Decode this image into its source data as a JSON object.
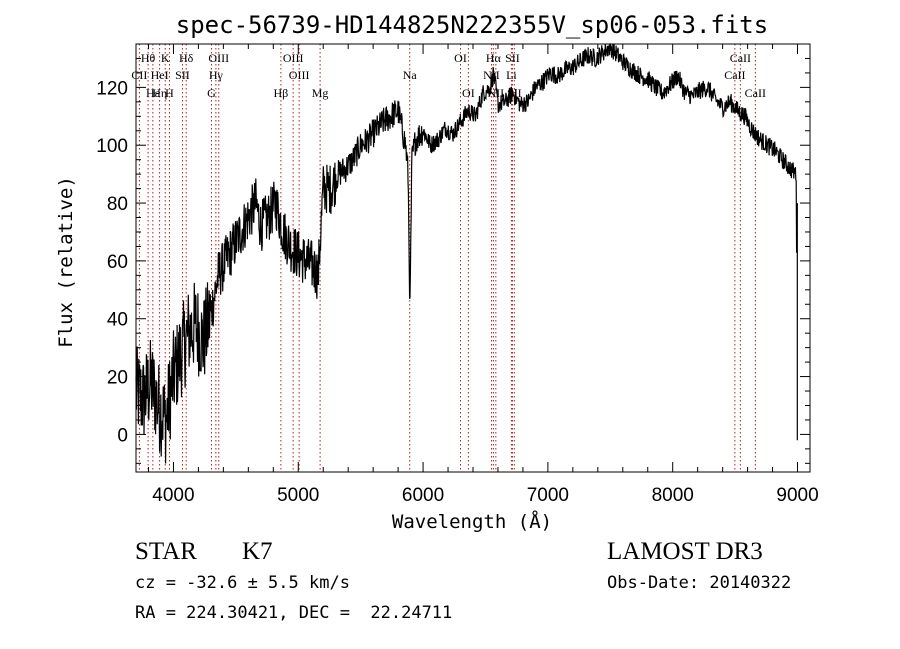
{
  "chart_data": {
    "type": "line",
    "title": "spec-56739-HD144825N222355V_sp06-053.fits",
    "xlabel": "Wavelength (Å)",
    "ylabel": "Flux (relative)",
    "xlim": [
      3700,
      9100
    ],
    "ylim": [
      -13,
      135
    ],
    "xticks": [
      4000,
      5000,
      6000,
      7000,
      8000,
      9000
    ],
    "yticks": [
      0,
      20,
      40,
      60,
      80,
      100,
      120
    ],
    "spectrum": {
      "x": [
        3700,
        3760,
        3820,
        3880,
        3940,
        4000,
        4060,
        4120,
        4180,
        4240,
        4300,
        4360,
        4420,
        4480,
        4540,
        4600,
        4660,
        4700,
        4760,
        4820,
        4880,
        4940,
        5000,
        5060,
        5120,
        5160,
        5200,
        5260,
        5320,
        5380,
        5440,
        5500,
        5560,
        5620,
        5680,
        5740,
        5800,
        5860,
        5880,
        5895,
        5910,
        5940,
        6000,
        6060,
        6120,
        6180,
        6240,
        6300,
        6360,
        6420,
        6480,
        6540,
        6563,
        6600,
        6660,
        6720,
        6780,
        6840,
        6900,
        6960,
        7020,
        7080,
        7140,
        7200,
        7260,
        7320,
        7380,
        7440,
        7500,
        7560,
        7620,
        7680,
        7740,
        7800,
        7860,
        7920,
        7980,
        8040,
        8100,
        8160,
        8220,
        8280,
        8340,
        8400,
        8460,
        8520,
        8580,
        8640,
        8700,
        8760,
        8820,
        8880,
        8940,
        8990,
        9000
      ],
      "y": [
        15,
        12,
        18,
        10,
        5,
        20,
        28,
        35,
        38,
        32,
        42,
        55,
        60,
        65,
        70,
        75,
        80,
        72,
        75,
        80,
        70,
        65,
        62,
        60,
        58,
        55,
        85,
        85,
        90,
        92,
        95,
        100,
        102,
        105,
        108,
        110,
        112,
        100,
        90,
        42,
        95,
        102,
        105,
        100,
        102,
        106,
        104,
        108,
        112,
        110,
        118,
        120,
        125,
        114,
        115,
        118,
        114,
        115,
        120,
        122,
        125,
        124,
        126,
        127,
        129,
        131,
        130,
        132,
        134,
        131,
        128,
        126,
        124,
        123,
        120,
        118,
        121,
        124,
        118,
        117,
        119,
        120,
        116,
        113,
        115,
        112,
        110,
        105,
        102,
        100,
        98,
        95,
        92,
        90,
        -2
      ]
    },
    "lines": [
      {
        "name": "Hθ",
        "wl": 3797,
        "row": 0,
        "dx": 0
      },
      {
        "name": "K",
        "wl": 3934,
        "row": 0,
        "dx": 0
      },
      {
        "name": "Hδ",
        "wl": 4102,
        "row": 0,
        "dx": 0
      },
      {
        "name": "OIII",
        "wl": 4363,
        "row": 0,
        "dx": 0
      },
      {
        "name": "OIII",
        "wl": 4959,
        "row": 0,
        "dx": 0
      },
      {
        "name": "OI",
        "wl": 6300,
        "row": 0,
        "dx": 0
      },
      {
        "name": "Hα",
        "wl": 6563,
        "row": 0,
        "dx": 0
      },
      {
        "name": "SII",
        "wl": 6716,
        "row": 0,
        "dx": 0
      },
      {
        "name": "CaII",
        "wl": 8542,
        "row": 0,
        "dx": 0
      },
      {
        "name": "CII",
        "wl": 3727,
        "row": 1,
        "dx": 0
      },
      {
        "name": "HeI",
        "wl": 3889,
        "row": 1,
        "dx": 0
      },
      {
        "name": "SII",
        "wl": 4072,
        "row": 1,
        "dx": 0
      },
      {
        "name": "Hγ",
        "wl": 4340,
        "row": 1,
        "dx": 0
      },
      {
        "name": "OIII",
        "wl": 5007,
        "row": 1,
        "dx": 0
      },
      {
        "name": "Na",
        "wl": 5893,
        "row": 1,
        "dx": 0
      },
      {
        "name": "NII",
        "wl": 6548,
        "row": 1,
        "dx": 0
      },
      {
        "name": "Li",
        "wl": 6708,
        "row": 1,
        "dx": 0
      },
      {
        "name": "CaII",
        "wl": 8498,
        "row": 1,
        "dx": 0
      },
      {
        "name": "Hε",
        "wl": 3835,
        "row": 2,
        "dx": 0
      },
      {
        "name": "Hη",
        "wl": 3890,
        "row": 2,
        "dx": 0
      },
      {
        "name": "H",
        "wl": 3968,
        "row": 2,
        "dx": 0
      },
      {
        "name": "G",
        "wl": 4305,
        "row": 2,
        "dx": 0
      },
      {
        "name": "Hβ",
        "wl": 4861,
        "row": 2,
        "dx": 0
      },
      {
        "name": "Mg",
        "wl": 5175,
        "row": 2,
        "dx": 0
      },
      {
        "name": "OI",
        "wl": 6363,
        "row": 2,
        "dx": 0
      },
      {
        "name": "NII",
        "wl": 6583,
        "row": 2,
        "dx": 0
      },
      {
        "name": "SII",
        "wl": 6731,
        "row": 2,
        "dx": 0
      },
      {
        "name": "CaII",
        "wl": 8662,
        "row": 2,
        "dx": 0
      }
    ],
    "line_color": "#000000",
    "marker_color": "#b22222",
    "grid": false
  },
  "info": {
    "object_class": "STAR",
    "subclass": "K7",
    "survey": "LAMOST DR3",
    "redshift": "cz = -32.6 ± 5.5 km/s",
    "obs_date": "Obs-Date: 20140322",
    "coords": "RA = 224.30421, DEC =  22.24711"
  }
}
